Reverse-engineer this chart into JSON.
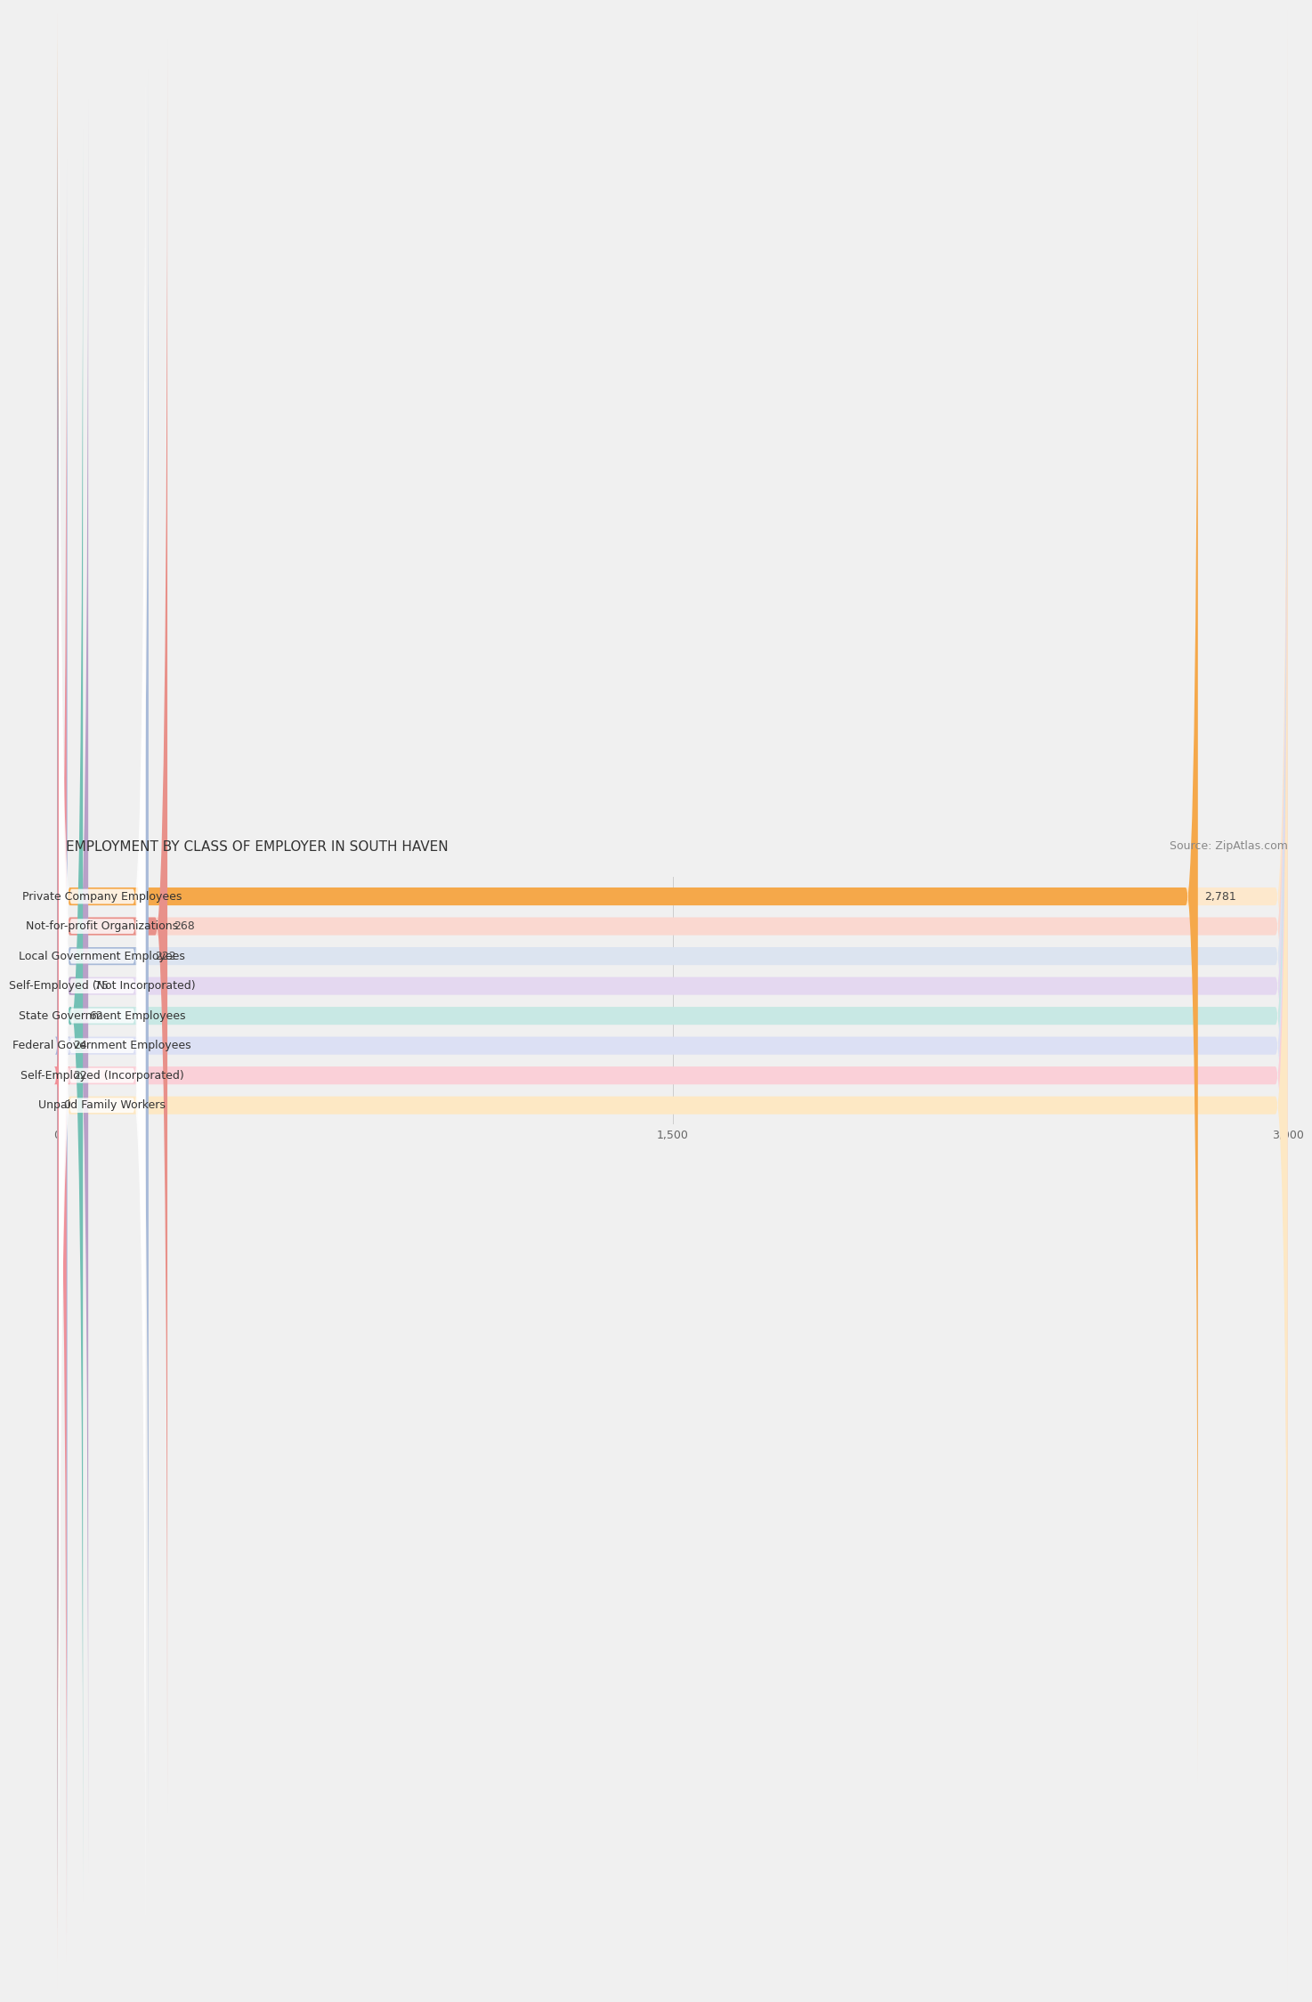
{
  "title": "EMPLOYMENT BY CLASS OF EMPLOYER IN SOUTH HAVEN",
  "source": "Source: ZipAtlas.com",
  "categories": [
    "Private Company Employees",
    "Not-for-profit Organizations",
    "Local Government Employees",
    "Self-Employed (Not Incorporated)",
    "State Government Employees",
    "Federal Government Employees",
    "Self-Employed (Incorporated)",
    "Unpaid Family Workers"
  ],
  "values": [
    2781,
    268,
    222,
    75,
    62,
    24,
    22,
    0
  ],
  "bar_colors": [
    "#F5A84A",
    "#E8918A",
    "#A8BAD8",
    "#B8A0C8",
    "#72C0B4",
    "#A8B4DC",
    "#F09098",
    "#F5C896"
  ],
  "bar_bg_colors": [
    "#FDE8CC",
    "#FAD8D0",
    "#DCE4F0",
    "#E4D8F0",
    "#C8E8E4",
    "#DCE0F4",
    "#FAD0D8",
    "#FDE8C4"
  ],
  "xlim": [
    0,
    3000
  ],
  "xticks": [
    0,
    1500,
    3000
  ],
  "xtick_labels": [
    "0",
    "1,500",
    "3,000"
  ],
  "bg_color": "#f0f0f0",
  "row_bg_color": "#e8e8e8",
  "title_fontsize": 11,
  "source_fontsize": 9,
  "label_fontsize": 9,
  "value_fontsize": 9
}
